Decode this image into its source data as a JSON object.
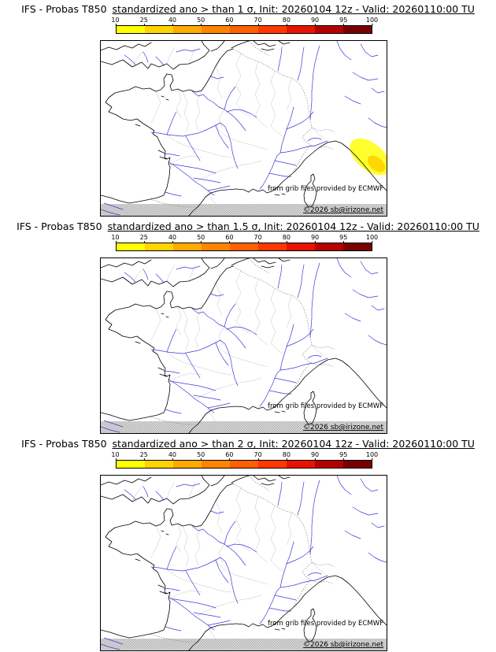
{
  "panels": [
    {
      "title_prefix": "IFS - Probas T850",
      "title_rest": "standardized ano > than 1 σ, Init: 20260104 12z - Valid: 20260110:00 TU",
      "show_anomaly": true
    },
    {
      "title_prefix": "IFS - Probas T850",
      "title_rest": "standardized ano > than 1.5 σ, Init: 20260104 12z - Valid: 20260110:00 TU",
      "show_anomaly": false
    },
    {
      "title_prefix": "IFS - Probas T850",
      "title_rest": "standardized ano > than 2 σ, Init: 20260104 12z - Valid: 20260110:00 TU",
      "show_anomaly": false
    }
  ],
  "colorbar": {
    "tick_labels": [
      "10",
      "25",
      "40",
      "50",
      "60",
      "70",
      "80",
      "90",
      "95",
      "100"
    ],
    "segment_colors": [
      "#ffff00",
      "#ffd400",
      "#ffaa00",
      "#ff8400",
      "#ff6000",
      "#ff3800",
      "#e61400",
      "#b40000",
      "#780000"
    ]
  },
  "map": {
    "credit": "from grib files provided by ECMWF",
    "copyright": "©2026 sb@irizone.net",
    "colors": {
      "coastline": "#000000",
      "rivers": "#3a3adc",
      "departments": "#c4c4c4",
      "anomaly_outer": "#ffff30",
      "anomaly_inner": "#ffd700"
    }
  }
}
